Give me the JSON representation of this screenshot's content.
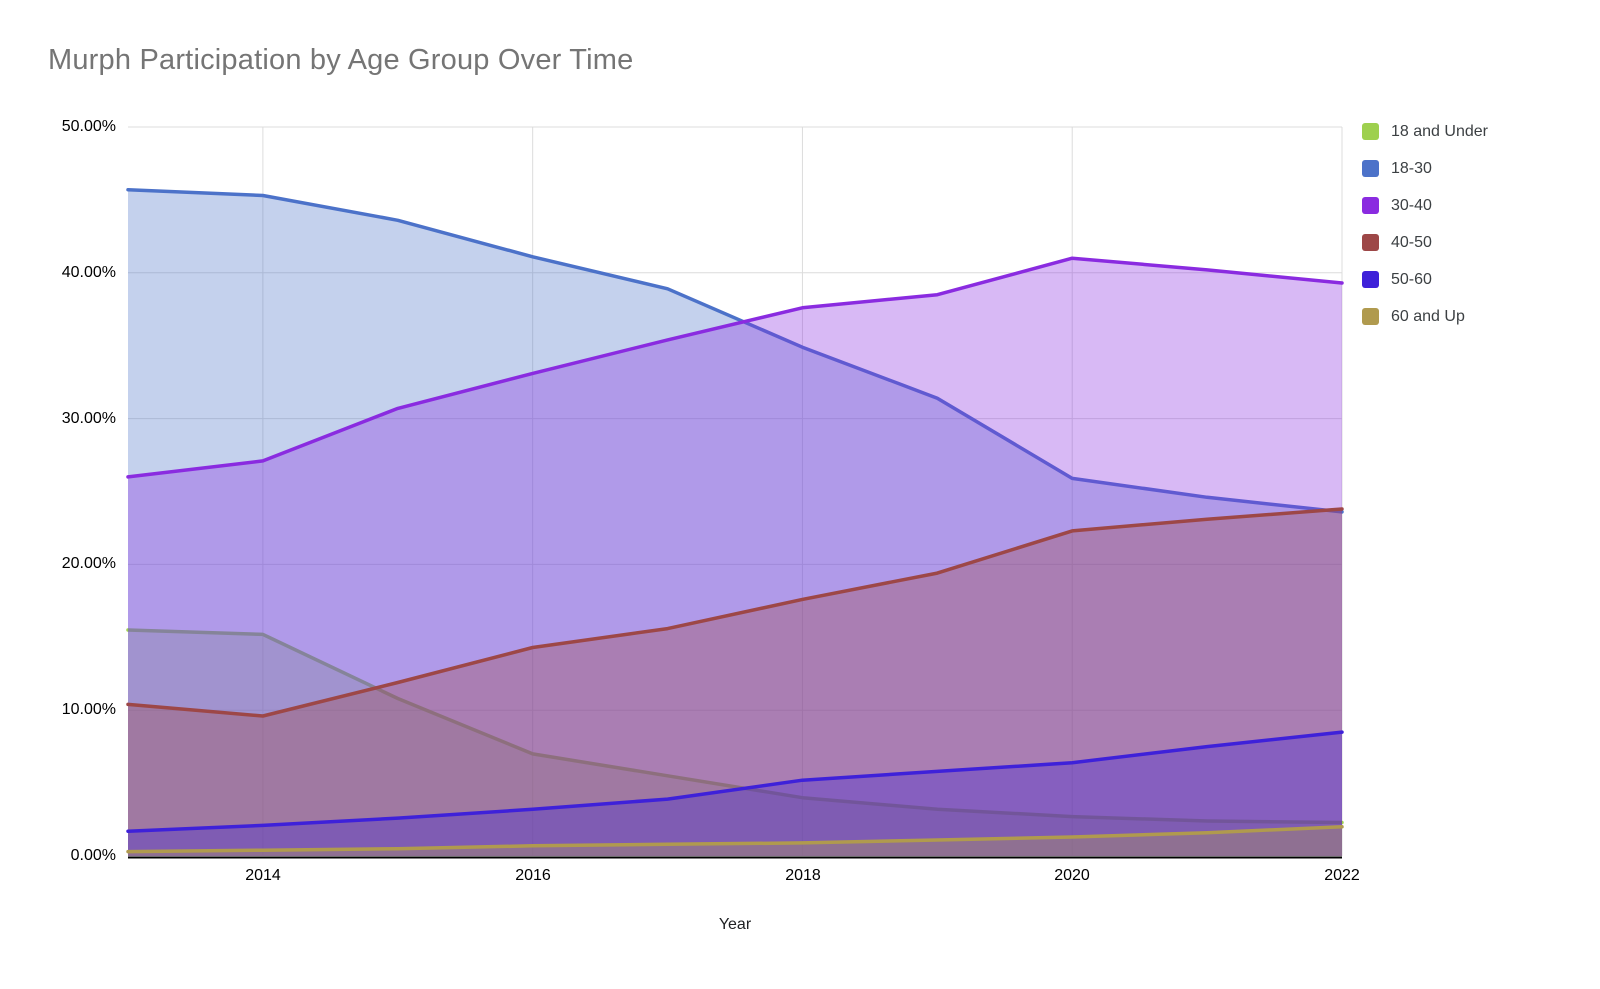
{
  "title": "Murph Participation by Age Group Over Time",
  "chart_data": {
    "type": "area",
    "title": "Murph Participation by Age Group Over Time",
    "xlabel": "Year",
    "ylabel": "",
    "x": [
      2013,
      2014,
      2015,
      2016,
      2017,
      2018,
      2019,
      2020,
      2021,
      2022
    ],
    "series": [
      {
        "name": "18 and Under",
        "color": "#9ed04e",
        "values": [
          15.5,
          15.2,
          10.8,
          7.0,
          5.5,
          4.0,
          3.2,
          2.7,
          2.4,
          2.3
        ]
      },
      {
        "name": "18-30",
        "color": "#4c72c9",
        "values": [
          45.7,
          45.3,
          43.6,
          41.1,
          38.9,
          34.9,
          31.4,
          25.9,
          24.6,
          23.6
        ]
      },
      {
        "name": "30-40",
        "color": "#8a2be0",
        "values": [
          26.0,
          27.1,
          30.7,
          33.1,
          35.4,
          37.6,
          38.5,
          41.0,
          40.2,
          39.3
        ]
      },
      {
        "name": "40-50",
        "color": "#9d4747",
        "values": [
          10.4,
          9.6,
          11.9,
          14.3,
          15.6,
          17.6,
          19.4,
          22.3,
          23.1,
          23.8
        ]
      },
      {
        "name": "50-60",
        "color": "#3e21d9",
        "values": [
          1.7,
          2.1,
          2.6,
          3.2,
          3.9,
          5.2,
          5.8,
          6.4,
          7.5,
          8.5
        ]
      },
      {
        "name": "60 and Up",
        "color": "#b09a4e",
        "values": [
          0.3,
          0.4,
          0.5,
          0.7,
          0.8,
          0.9,
          1.1,
          1.3,
          1.6,
          2.0
        ]
      }
    ],
    "ylim": [
      0,
      50
    ],
    "y_tick_labels": [
      "50.00%",
      "40.00%",
      "30.00%",
      "20.00%",
      "10.00%",
      "0.00%"
    ],
    "x_tick_labels": [
      "2014",
      "2016",
      "2018",
      "2020",
      "2022"
    ],
    "x_tick_years": [
      2014,
      2016,
      2018,
      2020,
      2022
    ],
    "grid": true,
    "legend_position": "right",
    "fill_opacity": 0.33,
    "gridline_color": "#dcdcdc",
    "axis_line_color": "#000000"
  }
}
